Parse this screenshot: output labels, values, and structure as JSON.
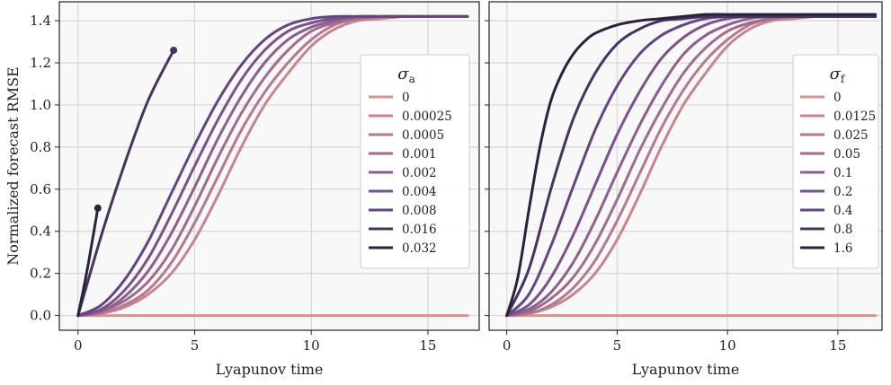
{
  "chart_data": [
    {
      "type": "line",
      "xlabel": "Lyapunov time",
      "ylabel": "Normalized forecast RMSE",
      "xlim": [
        -0.8,
        17.2
      ],
      "ylim": [
        -0.07,
        1.49
      ],
      "xticks": [
        "0",
        "5",
        "10",
        "15"
      ],
      "yticks": [
        "0.0",
        "0.2",
        "0.4",
        "0.6",
        "0.8",
        "1.0",
        "1.2",
        "1.4"
      ],
      "grid": true,
      "legend_title": "σ",
      "legend_title_sub": "a",
      "legend_position": "center-right",
      "series": [
        {
          "name": "0",
          "color": "#d5938d",
          "x": [
            0,
            16.7
          ],
          "y": [
            0.0,
            0.0
          ]
        },
        {
          "name": "0.00025",
          "color": "#c6858d",
          "x": [
            0,
            1,
            2,
            3,
            4,
            5,
            6,
            7,
            8,
            9,
            10,
            11,
            12,
            13,
            14,
            15,
            16.7
          ],
          "y": [
            0.0,
            0.01,
            0.04,
            0.1,
            0.2,
            0.36,
            0.57,
            0.8,
            1.0,
            1.15,
            1.28,
            1.36,
            1.4,
            1.41,
            1.42,
            1.42,
            1.42
          ]
        },
        {
          "name": "0.0005",
          "color": "#b47990",
          "x": [
            0,
            1,
            2,
            3,
            4,
            5,
            6,
            7,
            8,
            9,
            10,
            11,
            12,
            13,
            14,
            15,
            16.7
          ],
          "y": [
            0.0,
            0.01,
            0.05,
            0.12,
            0.25,
            0.44,
            0.66,
            0.88,
            1.06,
            1.2,
            1.31,
            1.38,
            1.41,
            1.42,
            1.42,
            1.42,
            1.42
          ]
        },
        {
          "name": "0.001",
          "color": "#a06c8e",
          "x": [
            0,
            1,
            2,
            3,
            4,
            5,
            6,
            7,
            8,
            9,
            10,
            11,
            12,
            13,
            14,
            15,
            16.7
          ],
          "y": [
            0.0,
            0.02,
            0.07,
            0.16,
            0.31,
            0.52,
            0.75,
            0.96,
            1.13,
            1.26,
            1.35,
            1.39,
            1.41,
            1.42,
            1.42,
            1.42,
            1.42
          ]
        },
        {
          "name": "0.002",
          "color": "#8d5f8d",
          "x": [
            0,
            1,
            2,
            3,
            4,
            5,
            6,
            7,
            8,
            9,
            10,
            11,
            12,
            13,
            14,
            15,
            16.7
          ],
          "y": [
            0.0,
            0.02,
            0.09,
            0.21,
            0.39,
            0.61,
            0.84,
            1.04,
            1.2,
            1.31,
            1.37,
            1.4,
            1.42,
            1.42,
            1.42,
            1.42,
            1.42
          ]
        },
        {
          "name": "0.004",
          "color": "#7a5289",
          "x": [
            0,
            1,
            2,
            3,
            4,
            5,
            6,
            7,
            8,
            9,
            10,
            11,
            12,
            13,
            14,
            15,
            16.7
          ],
          "y": [
            0.0,
            0.03,
            0.12,
            0.27,
            0.48,
            0.71,
            0.93,
            1.12,
            1.26,
            1.35,
            1.39,
            1.41,
            1.42,
            1.42,
            1.42,
            1.42,
            1.42
          ]
        },
        {
          "name": "0.008",
          "color": "#634580",
          "x": [
            0,
            1,
            2,
            3,
            4,
            5,
            6,
            7,
            8,
            9,
            10,
            11,
            12,
            13,
            14,
            15,
            16.7
          ],
          "y": [
            0.0,
            0.05,
            0.17,
            0.35,
            0.58,
            0.81,
            1.02,
            1.19,
            1.31,
            1.38,
            1.41,
            1.42,
            1.42,
            1.42,
            1.42,
            1.42,
            1.42
          ]
        },
        {
          "name": "0.016",
          "color": "#46345e",
          "x": [
            0,
            1,
            2,
            3,
            4.1
          ],
          "y": [
            0.0,
            0.38,
            0.72,
            1.02,
            1.26
          ],
          "end_marker": true
        },
        {
          "name": "0.032",
          "color": "#2a213d",
          "x": [
            0,
            0.4,
            0.85
          ],
          "y": [
            0.0,
            0.22,
            0.51
          ],
          "end_marker": true
        }
      ]
    },
    {
      "type": "line",
      "xlabel": "Lyapunov time",
      "ylabel": "",
      "xlim": [
        -0.8,
        17.0
      ],
      "ylim": [
        -0.07,
        1.49
      ],
      "xticks": [
        "0",
        "5",
        "10",
        "15"
      ],
      "yticks": [],
      "grid": true,
      "legend_title": "σ",
      "legend_title_sub": "f",
      "legend_position": "center-right",
      "series": [
        {
          "name": "0",
          "color": "#d5938d",
          "x": [
            0,
            16.7
          ],
          "y": [
            0.0,
            0.0
          ]
        },
        {
          "name": "0.0125",
          "color": "#c6858d",
          "x": [
            0,
            1,
            2,
            3,
            4,
            5,
            6,
            7,
            8,
            9,
            10,
            11,
            12,
            13,
            14,
            15,
            16.7
          ],
          "y": [
            0.0,
            0.01,
            0.04,
            0.1,
            0.2,
            0.36,
            0.57,
            0.8,
            1.0,
            1.15,
            1.28,
            1.36,
            1.4,
            1.41,
            1.42,
            1.42,
            1.42
          ]
        },
        {
          "name": "0.025",
          "color": "#b47990",
          "x": [
            0,
            1,
            2,
            3,
            4,
            5,
            6,
            7,
            8,
            9,
            10,
            11,
            12,
            13,
            14,
            15,
            16.7
          ],
          "y": [
            0.0,
            0.01,
            0.05,
            0.13,
            0.26,
            0.45,
            0.67,
            0.89,
            1.07,
            1.21,
            1.31,
            1.38,
            1.41,
            1.42,
            1.42,
            1.42,
            1.42
          ]
        },
        {
          "name": "0.05",
          "color": "#a06c8e",
          "x": [
            0,
            1,
            2,
            3,
            4,
            5,
            6,
            7,
            8,
            9,
            10,
            11,
            12,
            13,
            14,
            15,
            16.7
          ],
          "y": [
            0.0,
            0.02,
            0.08,
            0.18,
            0.34,
            0.55,
            0.78,
            0.98,
            1.15,
            1.27,
            1.35,
            1.39,
            1.41,
            1.42,
            1.42,
            1.42,
            1.42
          ]
        },
        {
          "name": "0.1",
          "color": "#8d5f8d",
          "x": [
            0,
            1,
            2,
            3,
            4,
            5,
            6,
            7,
            8,
            9,
            10,
            11,
            12,
            13,
            14,
            15,
            16.7
          ],
          "y": [
            0.0,
            0.03,
            0.11,
            0.25,
            0.45,
            0.68,
            0.9,
            1.09,
            1.24,
            1.33,
            1.38,
            1.41,
            1.42,
            1.42,
            1.42,
            1.42,
            1.42
          ]
        },
        {
          "name": "0.2",
          "color": "#7a5289",
          "x": [
            0,
            1,
            2,
            3,
            4,
            5,
            6,
            7,
            8,
            9,
            10,
            11,
            12,
            13,
            14,
            15,
            16.7
          ],
          "y": [
            0.0,
            0.05,
            0.18,
            0.38,
            0.62,
            0.86,
            1.06,
            1.22,
            1.32,
            1.38,
            1.41,
            1.42,
            1.42,
            1.42,
            1.42,
            1.42,
            1.42
          ]
        },
        {
          "name": "0.4",
          "color": "#634580",
          "x": [
            0,
            1,
            2,
            3,
            4,
            5,
            6,
            7,
            8,
            9,
            10,
            11,
            12,
            13,
            14,
            15,
            16.7
          ],
          "y": [
            0.0,
            0.1,
            0.33,
            0.61,
            0.88,
            1.09,
            1.24,
            1.33,
            1.38,
            1.41,
            1.42,
            1.42,
            1.42,
            1.42,
            1.42,
            1.42,
            1.42
          ]
        },
        {
          "name": "0.8",
          "color": "#46345e",
          "x": [
            0,
            1,
            2,
            3,
            4,
            5,
            6,
            7,
            8,
            9,
            10,
            11,
            12,
            13,
            14,
            15,
            16.7
          ],
          "y": [
            0.0,
            0.22,
            0.6,
            0.93,
            1.15,
            1.29,
            1.36,
            1.4,
            1.41,
            1.42,
            1.42,
            1.42,
            1.42,
            1.42,
            1.42,
            1.42,
            1.42
          ]
        },
        {
          "name": "1.6",
          "color": "#2a213d",
          "x": [
            0,
            0.5,
            1,
            1.5,
            2,
            2.5,
            3,
            3.5,
            4,
            5,
            6,
            7,
            8,
            9,
            10,
            11,
            12,
            13,
            14,
            15,
            16.7
          ],
          "y": [
            0.0,
            0.18,
            0.5,
            0.8,
            1.02,
            1.15,
            1.24,
            1.3,
            1.34,
            1.38,
            1.4,
            1.41,
            1.42,
            1.43,
            1.43,
            1.43,
            1.43,
            1.43,
            1.43,
            1.43,
            1.43
          ]
        }
      ]
    }
  ]
}
